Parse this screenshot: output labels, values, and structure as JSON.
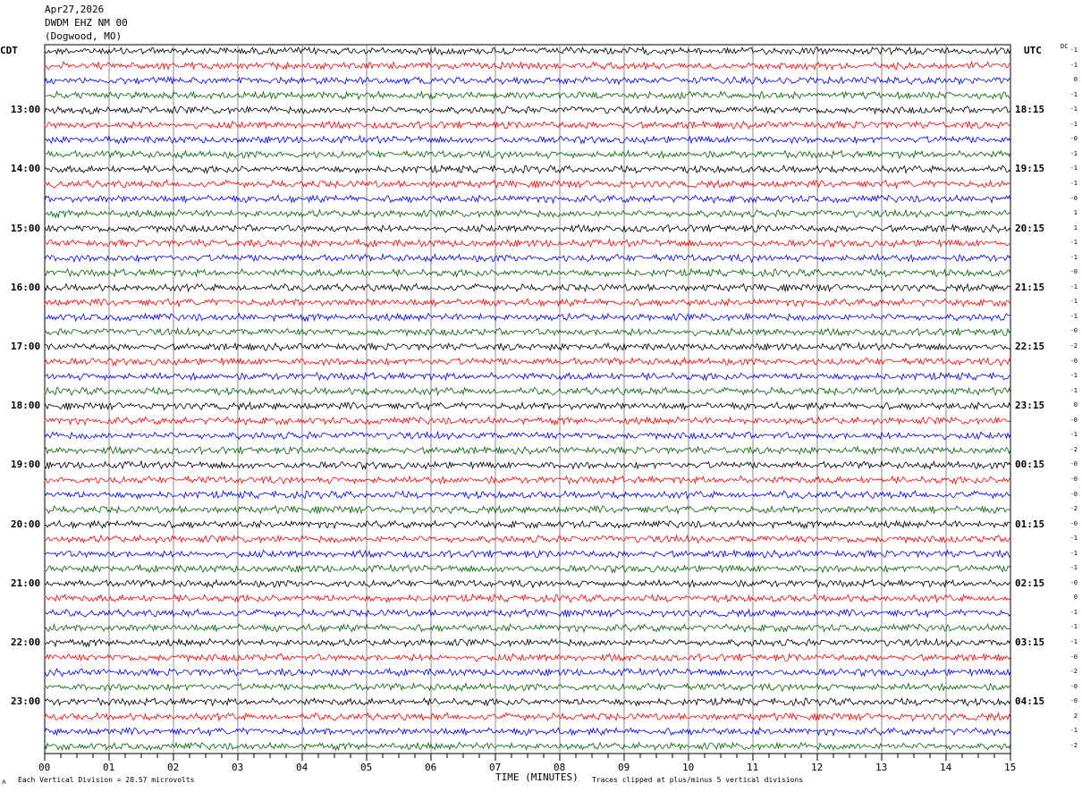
{
  "header": {
    "date": "Apr27,2026",
    "station": "DWDM EHZ NM 00",
    "location": "(Dogwood, MO)"
  },
  "chart_data": {
    "type": "line",
    "subtype": "helicorder",
    "left_axis_label": "CDT",
    "right_axis_label": "UTC",
    "dc_label": "DC",
    "left_hour_labels": [
      "13:00",
      "14:00",
      "15:00",
      "16:00",
      "17:00",
      "18:00",
      "19:00",
      "20:00",
      "21:00",
      "22:00",
      "23:00"
    ],
    "right_hour_labels": [
      "18:15",
      "19:15",
      "20:15",
      "21:15",
      "22:15",
      "23:15",
      "00:15",
      "01:15",
      "02:15",
      "03:15",
      "04:15"
    ],
    "x_tick_labels": [
      "00",
      "01",
      "02",
      "03",
      "04",
      "05",
      "06",
      "07",
      "08",
      "09",
      "10",
      "11",
      "12",
      "13",
      "14",
      "15"
    ],
    "xlabel": "TIME (MINUTES)",
    "xlim": [
      0,
      15
    ],
    "trace_count": 48,
    "trace_colors": [
      "#000000",
      "#ff0000",
      "#0000ff",
      "#006400"
    ],
    "dc_offsets": [
      "-1",
      "-1",
      "0",
      "-1",
      "-1",
      "-1",
      "-0",
      "-1",
      "-1",
      "-1",
      "-0",
      "1",
      "1",
      "-1",
      "-1",
      "-0",
      "-1",
      "-1",
      "-1",
      "-0",
      "-2",
      "-0",
      "-1",
      "-1",
      "0",
      "-0",
      "-1",
      "-2",
      "-0",
      "-0",
      "-0",
      "-2",
      "-0",
      "-1",
      "-1",
      "-1",
      "-0",
      "0",
      "-1",
      "-1",
      "-1",
      "-0",
      "-2",
      "-0",
      "-0",
      "2",
      "-1",
      "-2"
    ],
    "grid": "vertical every minute"
  },
  "footer": {
    "scale": "Each Vertical Division =   28.57 microvolts",
    "clip_note": "Traces clipped at plus/minus 5 vertical divisions",
    "corner_mark": "ʌ"
  }
}
